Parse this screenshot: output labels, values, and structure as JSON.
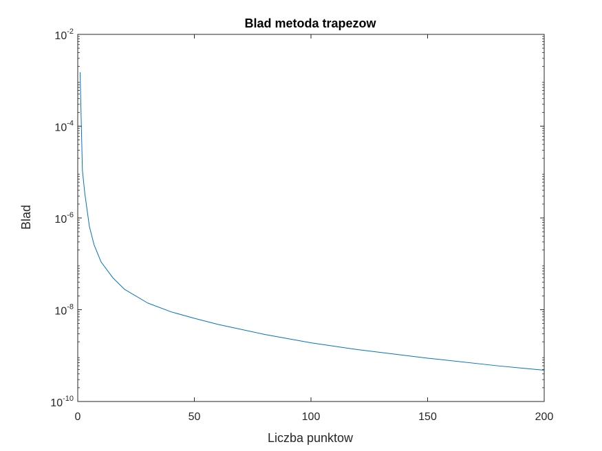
{
  "chart_data": {
    "type": "line",
    "title": "Blad metoda trapezow",
    "xlabel": "Liczba punktow",
    "ylabel": "Blad",
    "yscale": "log",
    "xlim": [
      0,
      200
    ],
    "ylim": [
      1e-10,
      0.01
    ],
    "grid": false,
    "legend": "none",
    "xticks": [
      0,
      50,
      100,
      150,
      200
    ],
    "xtick_labels": [
      "0",
      "50",
      "100",
      "150",
      "200"
    ],
    "yticks": [
      1e-10,
      1e-08,
      1e-06,
      0.0001,
      0.01
    ],
    "ytick_labels": [
      {
        "base": "10",
        "exp": "-10"
      },
      {
        "base": "10",
        "exp": "-8"
      },
      {
        "base": "10",
        "exp": "-6"
      },
      {
        "base": "10",
        "exp": "-4"
      },
      {
        "base": "10",
        "exp": "-2"
      }
    ],
    "series": [
      {
        "color": "#0072BD",
        "x": [
          1,
          2,
          3,
          4,
          5,
          7,
          10,
          15,
          20,
          30,
          40,
          50,
          60,
          80,
          100,
          120,
          150,
          180,
          200
        ],
        "y": [
          0.0015,
          1.1e-05,
          3.5e-06,
          1.5e-06,
          6.5e-07,
          2.6e-07,
          1.1e-07,
          5e-08,
          2.8e-08,
          1.4e-08,
          9e-09,
          6.5e-09,
          4.8e-09,
          2.9e-09,
          1.9e-09,
          1.35e-09,
          8.8e-10,
          6e-10,
          4.8e-10
        ]
      }
    ]
  }
}
